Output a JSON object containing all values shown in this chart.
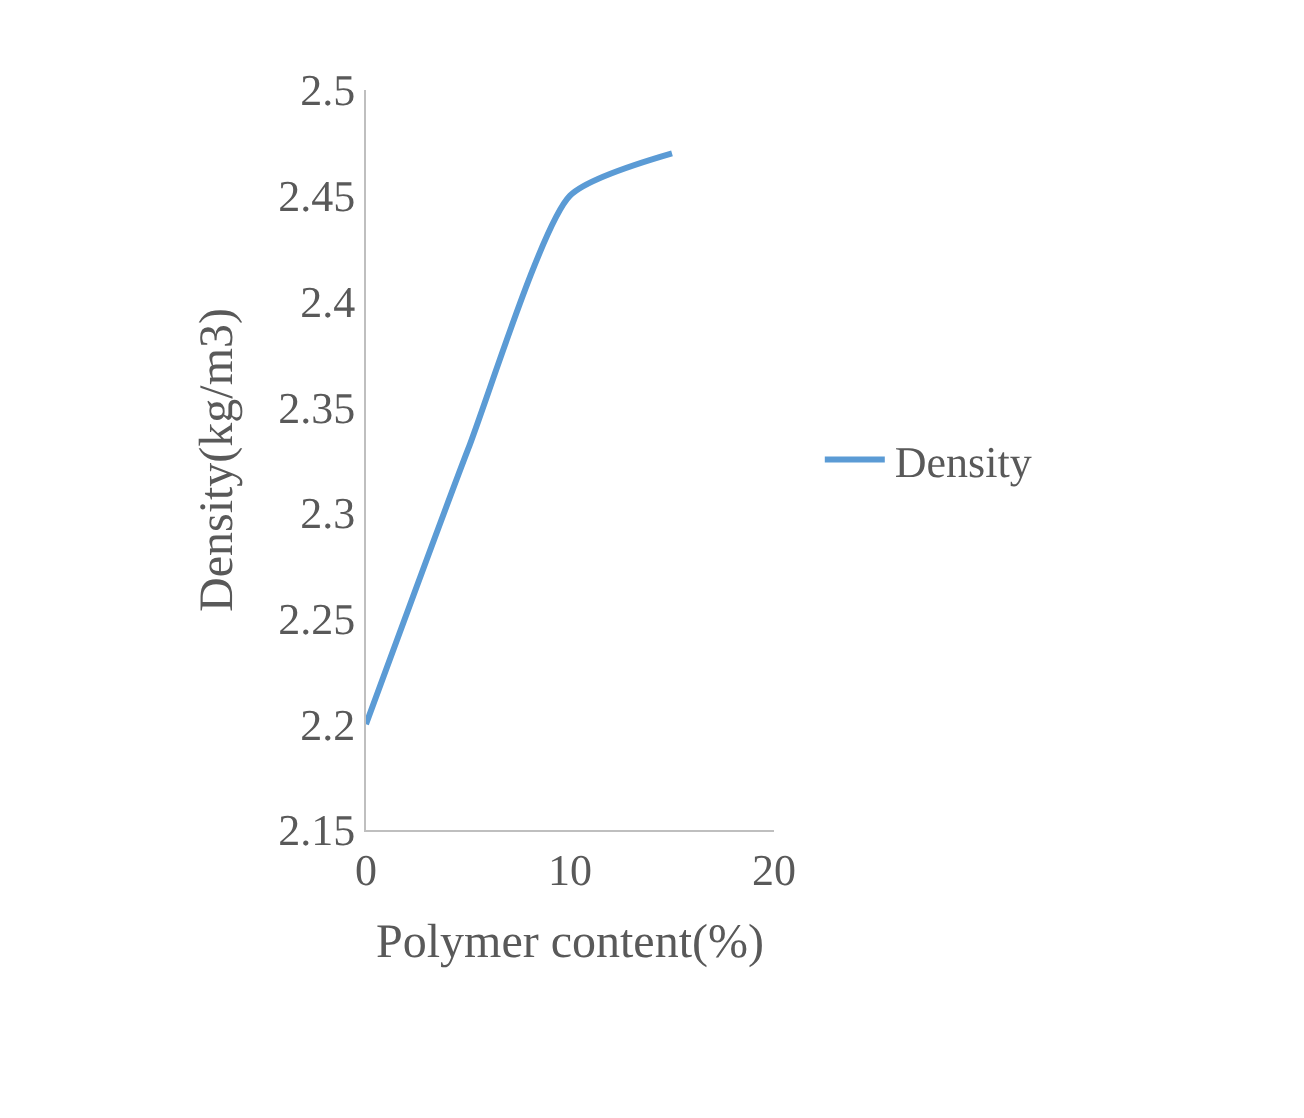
{
  "chart_data": {
    "type": "line",
    "xlabel": "Polymer content(%)",
    "ylabel": "Density(kg/m3)",
    "x": [
      0,
      5,
      10,
      15
    ],
    "series": [
      {
        "name": "Density",
        "color": "#5b9bd5",
        "values": [
          2.2,
          2.33,
          2.45,
          2.47
        ]
      }
    ],
    "xlim": [
      0,
      20
    ],
    "xticks": [
      0,
      10,
      20
    ],
    "ylim": [
      2.15,
      2.5
    ],
    "yticks": [
      2.15,
      2.2,
      2.25,
      2.3,
      2.35,
      2.4,
      2.45,
      2.5
    ],
    "legend": "right",
    "marker": "none",
    "line_style": "solid"
  }
}
